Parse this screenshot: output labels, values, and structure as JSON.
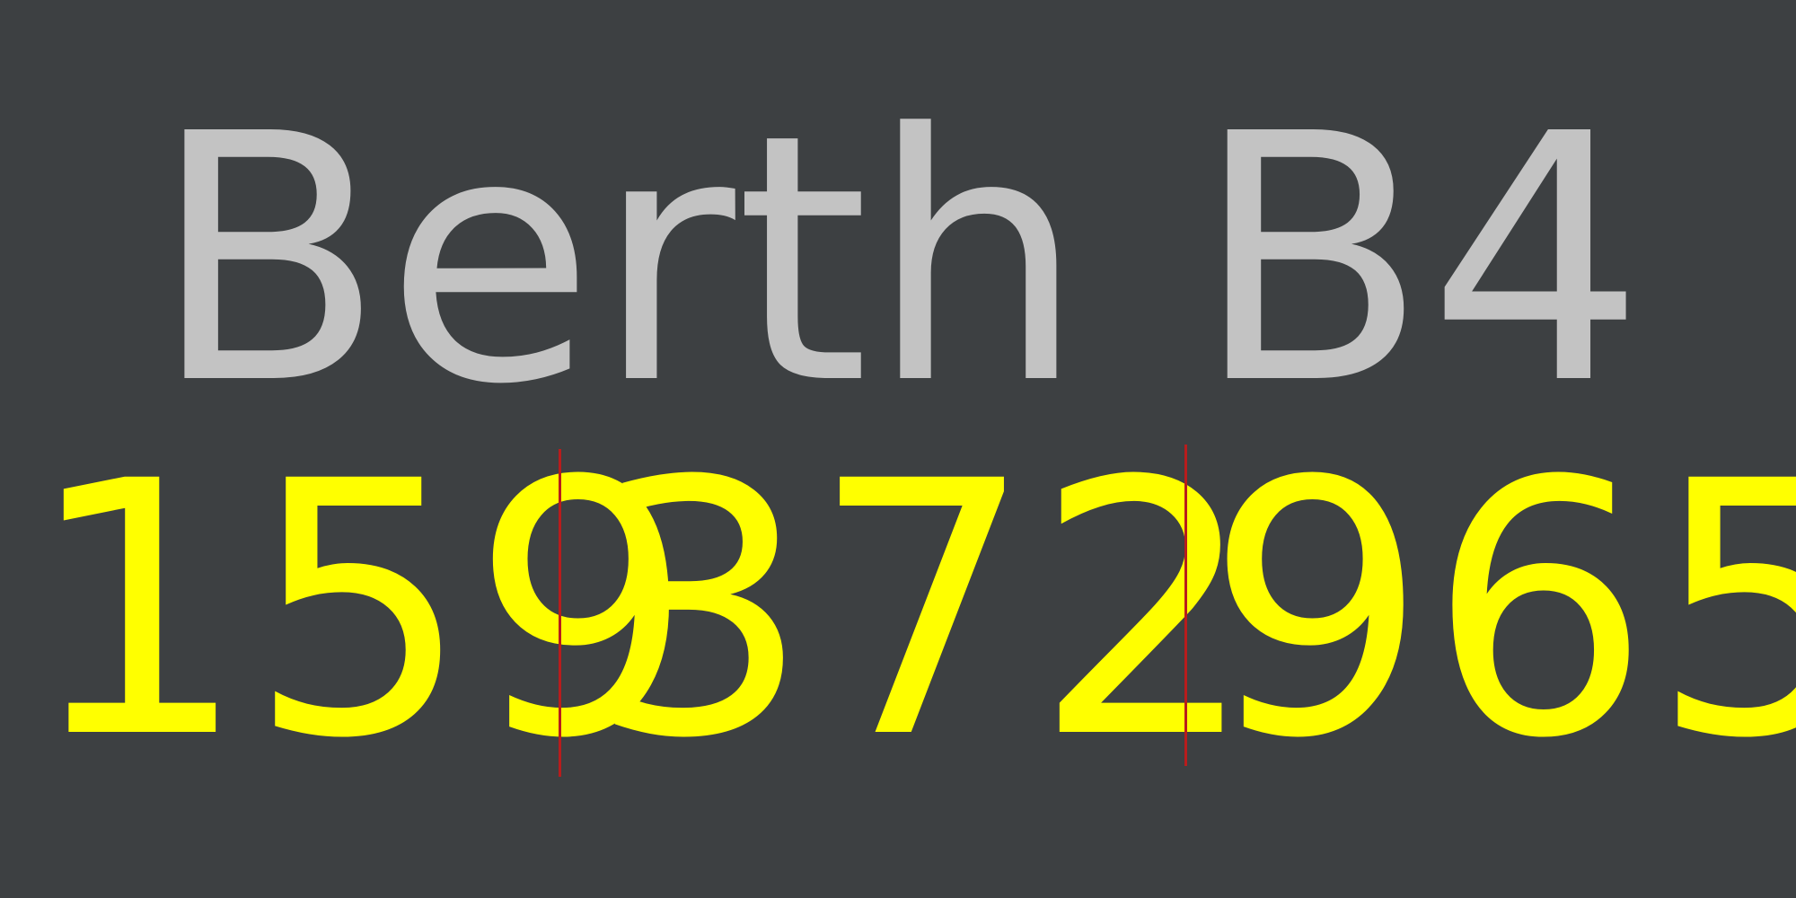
{
  "title": "Berth B4",
  "number_groups": [
    {
      "digits": [
        "1",
        "5",
        "9"
      ]
    },
    {
      "digits": [
        "3",
        "7",
        "2"
      ]
    },
    {
      "digits": [
        "9",
        "6",
        "5"
      ]
    }
  ],
  "colors": {
    "background": "#3d4042",
    "title": "#c3c3c3",
    "digits": "#ffff00",
    "divider": "#b81c1c"
  }
}
